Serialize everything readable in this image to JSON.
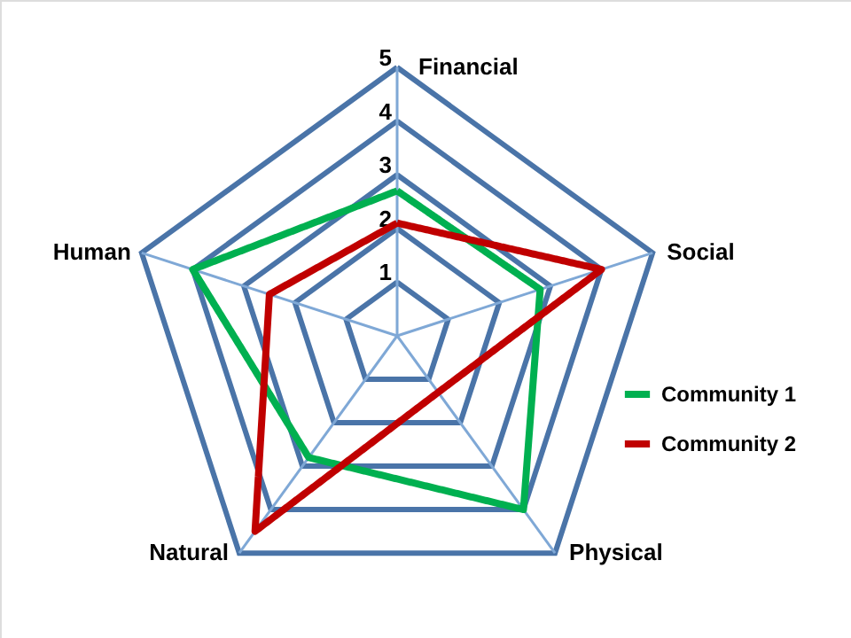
{
  "chart_data": {
    "type": "radar",
    "categories": [
      "Financial",
      "Social",
      "Physical",
      "Natural",
      "Human"
    ],
    "series": [
      {
        "name": "Community 1",
        "color": "#00b050",
        "values": [
          2.7,
          2.8,
          4,
          2.8,
          4
        ]
      },
      {
        "name": "Community 2",
        "color": "#c00000",
        "values": [
          2.1,
          4,
          1.3,
          4.5,
          2.5
        ]
      }
    ],
    "ylim": [
      0,
      5
    ],
    "yticks": [
      1,
      2,
      3,
      4,
      5
    ],
    "grid": true,
    "legend": "right",
    "marker": "none",
    "line_style": "solid"
  }
}
